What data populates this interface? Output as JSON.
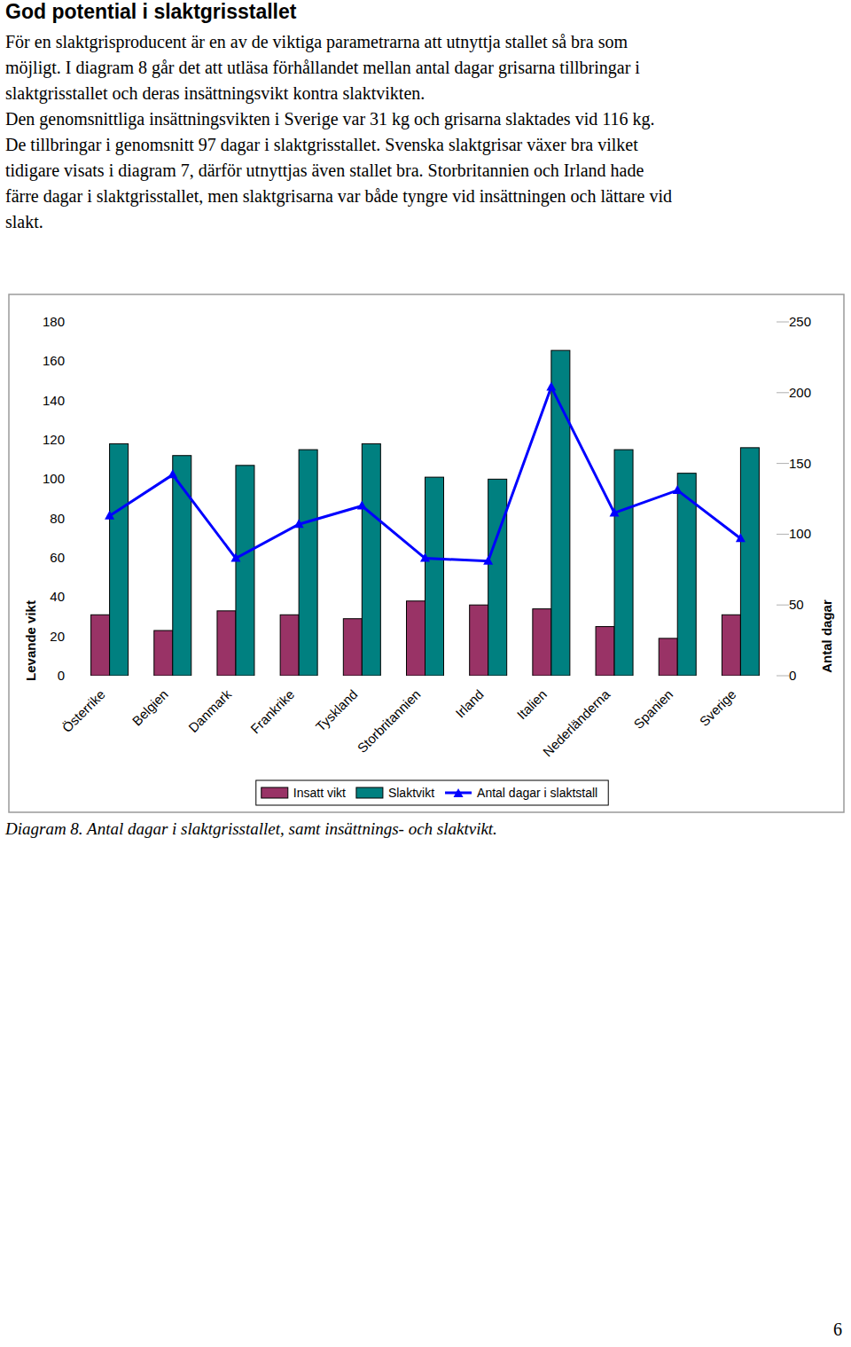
{
  "heading": "God potential i slaktgrisstallet",
  "paragraph_lines": [
    "För en slaktgrisproducent är en av de viktiga parametrarna att utnyttja stallet så bra som",
    "möjligt. I diagram 8 går det att utläsa förhållandet mellan antal dagar grisarna tillbringar i",
    "slaktgrisstallet och deras insättningsvikt kontra slaktvikten.",
    "Den genomsnittliga insättningsvikten i Sverige var 31 kg och grisarna slaktades vid 116 kg.",
    "De tillbringar i genomsnitt 97 dagar i slaktgrisstallet. Svenska slaktgrisar växer bra vilket",
    "tidigare visats i diagram 7, därför utnyttjas även stallet bra. Storbritannien och Irland hade",
    "färre dagar i slaktgrisstallet, men slaktgrisarna var både tyngre vid insättningen och lättare vid",
    "slakt."
  ],
  "chart_data": {
    "type": "bar",
    "categories": [
      "Österrike",
      "Belgien",
      "Danmark",
      "Frankrike",
      "Tyskland",
      "Storbritannien",
      "Irland",
      "Italien",
      "Nederländerna",
      "Spanien",
      "Sverige"
    ],
    "series": [
      {
        "name": "Insatt vikt",
        "color": "#993366",
        "values": [
          31,
          23,
          33,
          31,
          29,
          38,
          36,
          34,
          25,
          19,
          31
        ]
      },
      {
        "name": "Slaktvikt",
        "color": "#008080",
        "values": [
          118,
          112,
          107,
          115,
          118,
          101,
          100,
          165.5,
          115,
          103,
          116
        ]
      },
      {
        "name": "Antal dagar i slaktstall",
        "type": "line",
        "color": "#0000ff",
        "marker": "triangle",
        "axis": "y2",
        "values": [
          113,
          142,
          83,
          107,
          120,
          83,
          81,
          204,
          115,
          131,
          97
        ]
      }
    ],
    "y_label": "Levande vikt",
    "y2_label": "Antal dagar",
    "ylim": [
      0,
      180
    ],
    "yticks": [
      0,
      20,
      40,
      60,
      80,
      100,
      120,
      140,
      160,
      180
    ],
    "y2lim": [
      0,
      250
    ],
    "y2ticks": [
      0,
      50,
      100,
      150,
      200,
      250
    ],
    "grid": false,
    "legend": "bottom"
  },
  "caption": "Diagram 8. Antal dagar i slaktgrisstallet, samt insättnings- och slaktvikt.",
  "page_number": "6"
}
